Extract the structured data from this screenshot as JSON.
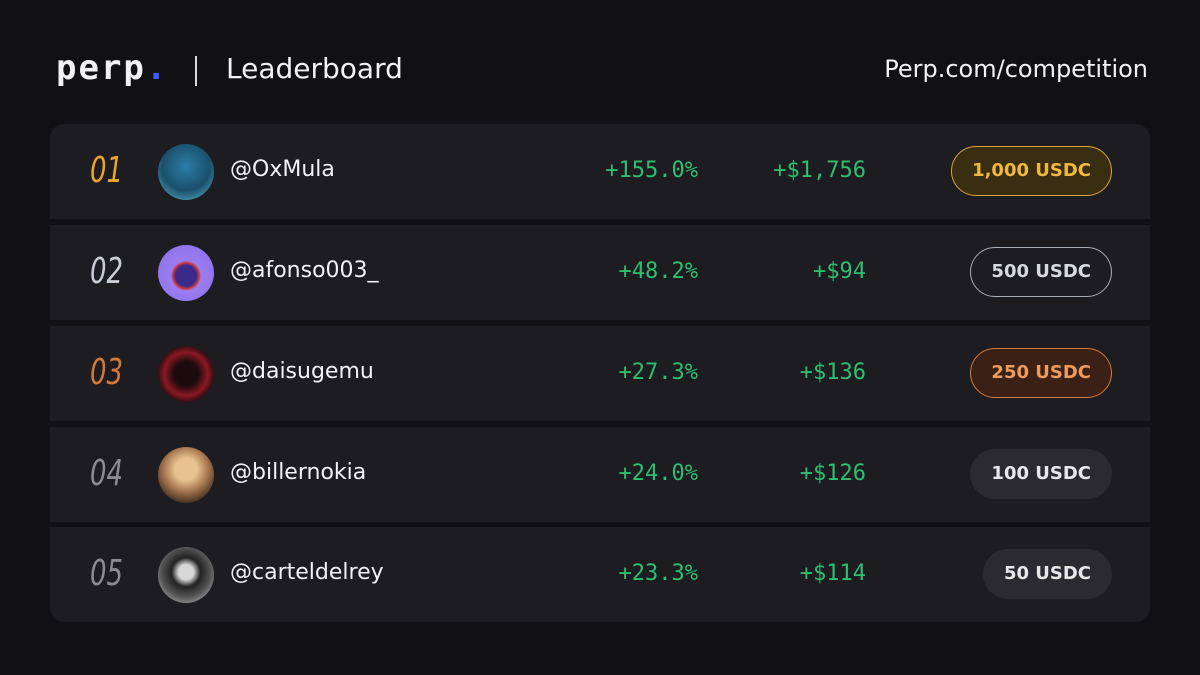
{
  "header": {
    "logo": "perp",
    "logo_dot": ".",
    "title": "Leaderboard",
    "url": "Perp.com/competition"
  },
  "table": {
    "rows": [
      [
        "01",
        "@OxMula",
        "+155.0%",
        "+$1,756",
        "1,000 USDC"
      ],
      [
        "02",
        "@afonso003_",
        "+48.2%",
        "+$94",
        "500 USDC"
      ],
      [
        "03",
        "@daisugemu",
        "+27.3%",
        "+$136",
        "250 USDC"
      ],
      [
        "04",
        "@billernokia",
        "+24.0%",
        "+$126",
        "100 USDC"
      ],
      [
        "05",
        "@carteldelrey",
        "+23.3%",
        "+$114",
        "50 USDC"
      ]
    ]
  }
}
